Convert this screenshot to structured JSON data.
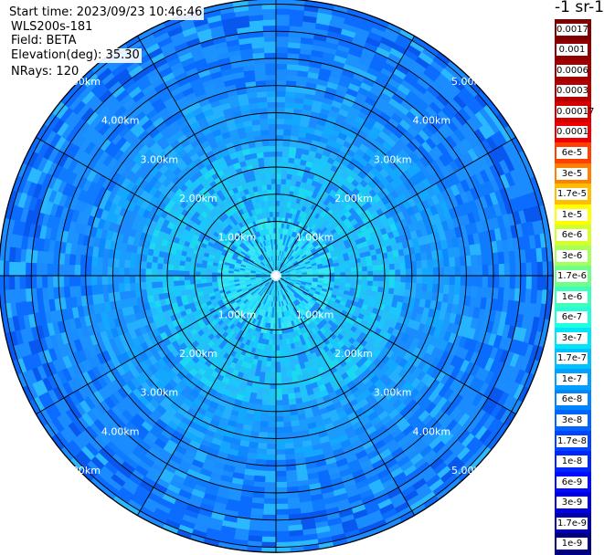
{
  "info": {
    "start_time": "Start time: 2023/09/23 10:46:46",
    "instrument": "WLS200s-181",
    "field": "Field: BETA",
    "elevation": "Elevation(deg): 35.30",
    "nrays": "NRays: 120"
  },
  "colorbar": {
    "units": "-1 sr-1",
    "labels": [
      "0.0017",
      "0.001",
      "0.0006",
      "0.0003",
      "0.00017",
      "0.0001",
      "6e-5",
      "3e-5",
      "1.7e-5",
      "1e-5",
      "6e-6",
      "3e-6",
      "1.7e-6",
      "1e-6",
      "6e-7",
      "3e-7",
      "1.7e-7",
      "1e-7",
      "6e-8",
      "3e-8",
      "1.7e-8",
      "1e-8",
      "6e-9",
      "3e-9",
      "1.7e-9",
      "1e-9"
    ],
    "colors": [
      "#7f0000",
      "#8f0000",
      "#a00000",
      "#b40000",
      "#d40000",
      "#ee0000",
      "#ff4000",
      "#ff8000",
      "#ffbf00",
      "#ffff00",
      "#d4ff2a",
      "#a6ff5a",
      "#6dff8a",
      "#3dffba",
      "#1fffe0",
      "#00e4f8",
      "#00c0ff",
      "#00a0ff",
      "#0084ff",
      "#0064ff",
      "#0044ff",
      "#0026ff",
      "#000cff",
      "#0000dd",
      "#0000b0",
      "#000080"
    ]
  },
  "range_rings": {
    "labels": [
      "1.00km",
      "2.00km",
      "3.00km",
      "4.00km",
      "5.00km"
    ]
  }
}
